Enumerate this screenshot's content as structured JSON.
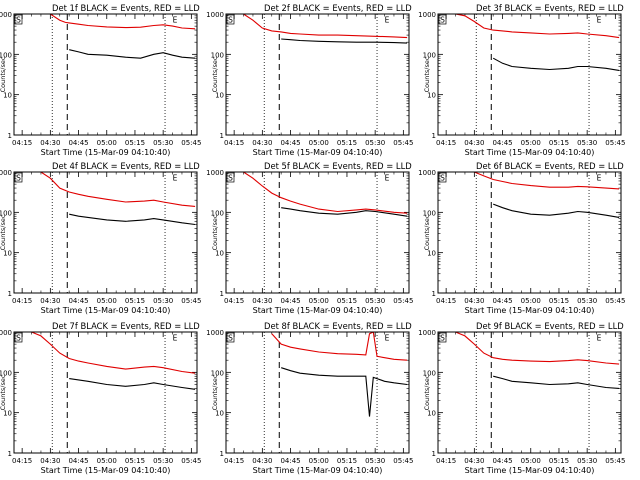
{
  "figure": {
    "x_axis_title": "Start Time (15-Mar-09 04:10:40)",
    "y_axis_title": "Counts/sec",
    "x_tick_labels": [
      "04:15",
      "04:30",
      "04:45",
      "05:00",
      "05:15",
      "05:30",
      "05:45"
    ],
    "y_tick_labels": [
      "1",
      "10",
      "100",
      "1000"
    ],
    "corner_labels": {
      "left": "S",
      "right": "E"
    },
    "colors": {
      "events": "#000000",
      "lld": "#e00000",
      "axes": "#000000",
      "background": "#ffffff"
    }
  },
  "chart_data": [
    {
      "type": "line",
      "title": "Det 1f BLACK = Events, RED = LLD",
      "xlabel": "Start Time (15-Mar-09 04:10:40)",
      "ylabel": "Counts/sec",
      "xlim": [
        "04:10:40",
        "05:48"
      ],
      "ylim": [
        1,
        1000
      ],
      "yscale": "log",
      "vlines": {
        "dotted": [
          "04:31",
          "05:31"
        ],
        "dashed": [
          "04:39"
        ]
      },
      "x": [
        "04:12",
        "04:20",
        "04:25",
        "04:30",
        "04:35",
        "04:38",
        "04:40",
        "04:45",
        "04:50",
        "05:00",
        "05:10",
        "05:18",
        "05:25",
        "05:30",
        "05:35",
        "05:40",
        "05:47"
      ],
      "series": [
        {
          "name": "Events",
          "values": [
            null,
            null,
            null,
            null,
            null,
            null,
            130,
            115,
            100,
            95,
            85,
            80,
            100,
            110,
            95,
            85,
            80
          ]
        },
        {
          "name": "LLD",
          "values": [
            1000,
            1000,
            1000,
            1000,
            700,
            620,
            600,
            560,
            520,
            480,
            460,
            470,
            520,
            540,
            500,
            450,
            430
          ]
        }
      ]
    },
    {
      "type": "line",
      "title": "Det 2f BLACK = Events, RED = LLD",
      "xlabel": "Start Time (15-Mar-09 04:10:40)",
      "ylabel": "Counts/sec",
      "xlim": [
        "04:10:40",
        "05:48"
      ],
      "ylim": [
        1,
        1000
      ],
      "yscale": "log",
      "vlines": {
        "dotted": [
          "04:31",
          "05:31"
        ],
        "dashed": [
          "04:39"
        ]
      },
      "x": [
        "04:12",
        "04:15",
        "04:20",
        "04:25",
        "04:30",
        "04:35",
        "04:40",
        "04:45",
        "04:50",
        "05:00",
        "05:10",
        "05:20",
        "05:30",
        "05:40",
        "05:47"
      ],
      "series": [
        {
          "name": "Events",
          "values": [
            null,
            null,
            null,
            null,
            null,
            null,
            240,
            230,
            220,
            210,
            205,
            200,
            200,
            195,
            190
          ]
        },
        {
          "name": "LLD",
          "values": [
            1000,
            1000,
            1000,
            700,
            450,
            380,
            360,
            330,
            320,
            300,
            300,
            290,
            280,
            270,
            260
          ]
        }
      ]
    },
    {
      "type": "line",
      "title": "Det 3f BLACK = Events, RED = LLD",
      "xlabel": "Start Time (15-Mar-09 04:10:40)",
      "ylabel": "Counts/sec",
      "xlim": [
        "04:10:40",
        "05:48"
      ],
      "ylim": [
        1,
        1000
      ],
      "yscale": "log",
      "vlines": {
        "dotted": [
          "04:31",
          "05:31"
        ],
        "dashed": [
          "04:39"
        ]
      },
      "x": [
        "04:12",
        "04:20",
        "04:25",
        "04:30",
        "04:35",
        "04:40",
        "04:45",
        "04:50",
        "05:00",
        "05:10",
        "05:20",
        "05:25",
        "05:30",
        "05:40",
        "05:47"
      ],
      "series": [
        {
          "name": "Events",
          "values": [
            null,
            null,
            null,
            null,
            null,
            80,
            60,
            50,
            45,
            42,
            45,
            50,
            50,
            45,
            40
          ]
        },
        {
          "name": "LLD",
          "values": [
            1000,
            1000,
            900,
            650,
            450,
            400,
            380,
            360,
            340,
            320,
            330,
            340,
            320,
            290,
            260
          ]
        }
      ]
    },
    {
      "type": "line",
      "title": "Det 4f BLACK = Events, RED = LLD",
      "xlabel": "Start Time (15-Mar-09 04:10:40)",
      "ylabel": "Counts/sec",
      "xlim": [
        "04:10:40",
        "05:48"
      ],
      "ylim": [
        1,
        1000
      ],
      "yscale": "log",
      "vlines": {
        "dotted": [
          "04:31",
          "05:31"
        ],
        "dashed": [
          "04:39"
        ]
      },
      "x": [
        "04:12",
        "04:20",
        "04:25",
        "04:30",
        "04:35",
        "04:40",
        "04:45",
        "04:50",
        "05:00",
        "05:10",
        "05:20",
        "05:25",
        "05:30",
        "05:40",
        "05:47"
      ],
      "series": [
        {
          "name": "Events",
          "values": [
            null,
            null,
            null,
            null,
            null,
            90,
            80,
            75,
            65,
            60,
            65,
            70,
            65,
            55,
            50
          ]
        },
        {
          "name": "LLD",
          "values": [
            1000,
            1000,
            1000,
            700,
            400,
            320,
            280,
            250,
            210,
            180,
            190,
            200,
            180,
            150,
            140
          ]
        }
      ]
    },
    {
      "type": "line",
      "title": "Det 5f BLACK = Events, RED = LLD",
      "xlabel": "Start Time (15-Mar-09 04:10:40)",
      "ylabel": "Counts/sec",
      "xlim": [
        "04:10:40",
        "05:48"
      ],
      "ylim": [
        1,
        1000
      ],
      "yscale": "log",
      "vlines": {
        "dotted": [
          "04:31",
          "05:31"
        ],
        "dashed": [
          "04:39"
        ]
      },
      "x": [
        "04:12",
        "04:20",
        "04:25",
        "04:30",
        "04:35",
        "04:40",
        "04:45",
        "04:50",
        "05:00",
        "05:10",
        "05:20",
        "05:25",
        "05:30",
        "05:40",
        "05:47"
      ],
      "series": [
        {
          "name": "Events",
          "values": [
            null,
            null,
            null,
            null,
            null,
            130,
            120,
            110,
            95,
            90,
            100,
            110,
            105,
            90,
            80
          ]
        },
        {
          "name": "LLD",
          "values": [
            1000,
            1000,
            700,
            450,
            300,
            230,
            190,
            160,
            120,
            105,
            115,
            120,
            115,
            100,
            95
          ]
        }
      ]
    },
    {
      "type": "line",
      "title": "Det 6f BLACK = Events, RED = LLD",
      "xlabel": "Start Time (15-Mar-09 04:10:40)",
      "ylabel": "Counts/sec",
      "xlim": [
        "04:10:40",
        "05:48"
      ],
      "ylim": [
        1,
        1000
      ],
      "yscale": "log",
      "vlines": {
        "dotted": [
          "04:31",
          "05:31"
        ],
        "dashed": [
          "04:39"
        ]
      },
      "x": [
        "04:12",
        "04:20",
        "04:25",
        "04:30",
        "04:35",
        "04:40",
        "04:45",
        "04:50",
        "05:00",
        "05:10",
        "05:20",
        "05:25",
        "05:30",
        "05:40",
        "05:47"
      ],
      "series": [
        {
          "name": "Events",
          "values": [
            null,
            null,
            null,
            null,
            null,
            160,
            130,
            110,
            90,
            85,
            95,
            105,
            100,
            85,
            75
          ]
        },
        {
          "name": "LLD",
          "values": [
            1000,
            1000,
            1000,
            1000,
            800,
            650,
            580,
            520,
            460,
            420,
            420,
            440,
            430,
            400,
            380
          ]
        }
      ]
    },
    {
      "type": "line",
      "title": "Det 7f BLACK = Events, RED = LLD",
      "xlabel": "Start Time (15-Mar-09 04:10:40)",
      "ylabel": "Counts/sec",
      "xlim": [
        "04:10:40",
        "05:48"
      ],
      "ylim": [
        1,
        1000
      ],
      "yscale": "log",
      "vlines": {
        "dotted": [
          "04:31",
          "05:31"
        ],
        "dashed": [
          "04:39"
        ]
      },
      "x": [
        "04:12",
        "04:20",
        "04:25",
        "04:30",
        "04:35",
        "04:40",
        "04:45",
        "04:50",
        "05:00",
        "05:10",
        "05:20",
        "05:25",
        "05:30",
        "05:40",
        "05:47"
      ],
      "series": [
        {
          "name": "Events",
          "values": [
            null,
            null,
            null,
            null,
            null,
            70,
            65,
            60,
            50,
            45,
            50,
            55,
            50,
            42,
            38
          ]
        },
        {
          "name": "LLD",
          "values": [
            1000,
            1000,
            800,
            500,
            300,
            220,
            190,
            170,
            140,
            120,
            135,
            140,
            130,
            105,
            95
          ]
        }
      ]
    },
    {
      "type": "line",
      "title": "Det 8f BLACK = Events, RED = LLD",
      "xlabel": "Start Time (15-Mar-09 04:10:40)",
      "ylabel": "Counts/sec",
      "xlim": [
        "04:10:40",
        "05:48"
      ],
      "ylim": [
        1,
        1000
      ],
      "yscale": "log",
      "vlines": {
        "dotted": [
          "04:31",
          "05:31"
        ],
        "dashed": [
          "04:39"
        ]
      },
      "x": [
        "04:12",
        "04:20",
        "04:25",
        "04:30",
        "04:35",
        "04:40",
        "04:45",
        "04:50",
        "05:00",
        "05:10",
        "05:20",
        "05:25",
        "05:27",
        "05:29",
        "05:31",
        "05:35",
        "05:40",
        "05:47"
      ],
      "series": [
        {
          "name": "Events",
          "values": [
            null,
            null,
            null,
            null,
            null,
            130,
            110,
            95,
            85,
            80,
            80,
            80,
            8,
            75,
            70,
            60,
            55,
            50
          ]
        },
        {
          "name": "LLD",
          "values": [
            null,
            null,
            null,
            null,
            900,
            500,
            420,
            380,
            320,
            290,
            280,
            270,
            900,
            1000,
            250,
            230,
            210,
            200
          ]
        }
      ]
    },
    {
      "type": "line",
      "title": "Det 9f BLACK = Events, RED = LLD",
      "xlabel": "Start Time (15-Mar-09 04:10:40)",
      "ylabel": "Counts/sec",
      "xlim": [
        "04:10:40",
        "05:48"
      ],
      "ylim": [
        1,
        1000
      ],
      "yscale": "log",
      "vlines": {
        "dotted": [
          "04:31",
          "05:31"
        ],
        "dashed": [
          "04:39"
        ]
      },
      "x": [
        "04:12",
        "04:20",
        "04:25",
        "04:30",
        "04:35",
        "04:40",
        "04:45",
        "04:50",
        "05:00",
        "05:10",
        "05:20",
        "05:25",
        "05:30",
        "05:40",
        "05:47"
      ],
      "series": [
        {
          "name": "Events",
          "values": [
            null,
            null,
            null,
            null,
            null,
            80,
            70,
            60,
            55,
            50,
            52,
            55,
            50,
            42,
            40
          ]
        },
        {
          "name": "LLD",
          "values": [
            1000,
            1000,
            800,
            500,
            300,
            230,
            210,
            200,
            190,
            185,
            195,
            205,
            195,
            170,
            160
          ]
        }
      ]
    }
  ]
}
